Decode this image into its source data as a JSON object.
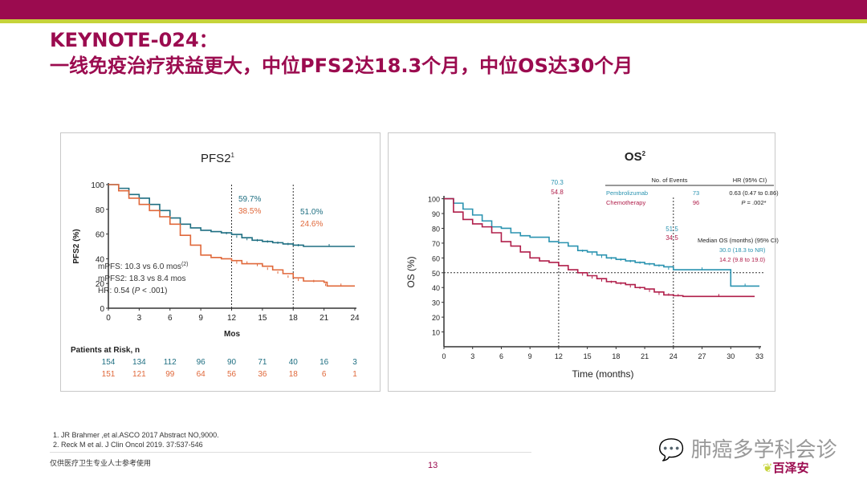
{
  "title": {
    "line1": "KEYNOTE-024：",
    "line2": "一线免疫治疗获益更大，中位PFS2达18.3个月，中位OS达30个月"
  },
  "colors": {
    "brand": "#9b0b4f",
    "accent": "#c6d33a",
    "pembro_left": "#1f6f82",
    "chemo_left": "#e0683a",
    "pembro_right": "#2a93b0",
    "chemo_right": "#b01e4a"
  },
  "chart_data": [
    {
      "type": "line",
      "title": "PFS2",
      "title_sup": "1",
      "xlabel": "Mos",
      "ylabel": "PFS2 (%)",
      "xlim": [
        0,
        24
      ],
      "ylim": [
        0,
        100
      ],
      "xticks": [
        "0",
        "3",
        "6",
        "9",
        "12",
        "15",
        "18",
        "21",
        "24"
      ],
      "yticks": [
        "0",
        "20",
        "40",
        "60",
        "80",
        "100"
      ],
      "reference_lines_x": [
        12,
        18
      ],
      "annotations": {
        "m12_pembro": "59.7%",
        "m12_chemo": "38.5%",
        "m18_pembro": "51.0%",
        "m18_chemo": "24.6%",
        "stat1": "mPFS: 10.3 vs 6.0 mos",
        "stat1_sup": "(2)",
        "stat2": "mPFS2: 18.3 vs 8.4 mos",
        "stat3_pre": "HR: 0.54 (",
        "stat3_p": "P",
        "stat3_post": " < .001)"
      },
      "risk_label": "Patients at Risk, n",
      "risk": {
        "pembro": [
          "154",
          "134",
          "112",
          "96",
          "90",
          "71",
          "40",
          "16",
          "3"
        ],
        "chemo": [
          "151",
          "121",
          "99",
          "64",
          "56",
          "36",
          "18",
          "6",
          "1"
        ]
      },
      "series": [
        {
          "name": "Pembrolizumab",
          "x": [
            0,
            1,
            2,
            3,
            4,
            5,
            6,
            7,
            8,
            9,
            10,
            11,
            12,
            13,
            14,
            15,
            16,
            17,
            18,
            19,
            24
          ],
          "y": [
            100,
            97,
            92,
            89,
            84,
            79,
            73,
            68,
            65,
            63,
            62,
            61,
            59.7,
            57,
            55,
            54,
            53,
            52,
            51,
            50,
            50
          ]
        },
        {
          "name": "Chemotherapy",
          "x": [
            0,
            1,
            2,
            3,
            4,
            5,
            6,
            7,
            8,
            9,
            10,
            11,
            12,
            13,
            14,
            15,
            16,
            17,
            18,
            19,
            21,
            21.3,
            24
          ],
          "y": [
            100,
            95,
            89,
            84,
            79,
            74,
            68,
            59,
            51,
            43,
            41,
            40,
            38.5,
            36,
            36,
            34,
            31,
            28,
            24.6,
            22,
            21,
            18,
            18
          ]
        }
      ]
    },
    {
      "type": "line",
      "title": "OS",
      "title_sup": "2",
      "xlabel": "Time (months)",
      "ylabel": "OS (%)",
      "xlim": [
        0,
        33
      ],
      "ylim": [
        0,
        100
      ],
      "xticks": [
        "0",
        "3",
        "6",
        "9",
        "12",
        "15",
        "18",
        "21",
        "24",
        "27",
        "30",
        "33"
      ],
      "yticks": [
        "10",
        "20",
        "30",
        "40",
        "50",
        "60",
        "70",
        "80",
        "90",
        "100"
      ],
      "reference_lines_x": [
        12,
        24
      ],
      "reference_line_y": 50,
      "annotations": {
        "m12_pembro": "70.3",
        "m12_chemo": "54.8",
        "m24_pembro": "51.5",
        "m24_chemo": "34.5"
      },
      "table": {
        "col_events": "No. of Events",
        "col_hr": "HR (95% CI)",
        "pembro_label": "Pembrolizumab",
        "pembro_events": "73",
        "hr": "0.63 (0.47 to 0.86)",
        "chemo_label": "Chemotherapy",
        "chemo_events": "96",
        "p_pre": "P",
        "p_post": " = .002*",
        "median_label": "Median OS (months) (95% CI)",
        "median_pembro": "30.0 (18.3 to NR)",
        "median_chemo": "14.2 (9.8 to 19.0)"
      },
      "series": [
        {
          "name": "Pembrolizumab",
          "x": [
            0,
            1,
            2,
            3,
            4,
            5,
            6,
            7,
            8,
            9,
            10,
            11,
            12,
            13,
            14,
            15,
            16,
            17,
            18,
            19,
            20,
            21,
            22,
            23,
            24,
            30,
            30,
            33
          ],
          "y": [
            100,
            97,
            93,
            89,
            85,
            81,
            80,
            77,
            75,
            74,
            74,
            71,
            70.3,
            68,
            65,
            64,
            62,
            60,
            59,
            58,
            57,
            56,
            55,
            54,
            52,
            52,
            41,
            41
          ]
        },
        {
          "name": "Chemotherapy",
          "x": [
            0,
            1,
            2,
            3,
            4,
            5,
            6,
            7,
            8,
            9,
            10,
            11,
            12,
            13,
            14,
            15,
            16,
            17,
            18,
            19,
            20,
            21,
            22,
            23,
            24,
            25,
            32.5
          ],
          "y": [
            100,
            91,
            86,
            83,
            81,
            77,
            71,
            68,
            64,
            60,
            58,
            57,
            54.8,
            52,
            50,
            48,
            46,
            44,
            43,
            42,
            40,
            39,
            37,
            35,
            34.5,
            34,
            34
          ]
        }
      ]
    }
  ],
  "refs": [
    "1.    JR Brahmer ,et al.ASCO 2017 Abstract NO,9000.",
    "2.    Reck M et al. J Clin Oncol 2019. 37:537-546"
  ],
  "footer": "仅供医疗卫生专业人士参考使用",
  "page": "13",
  "watermark": "肺癌多学科会诊",
  "logo": "百泽安"
}
